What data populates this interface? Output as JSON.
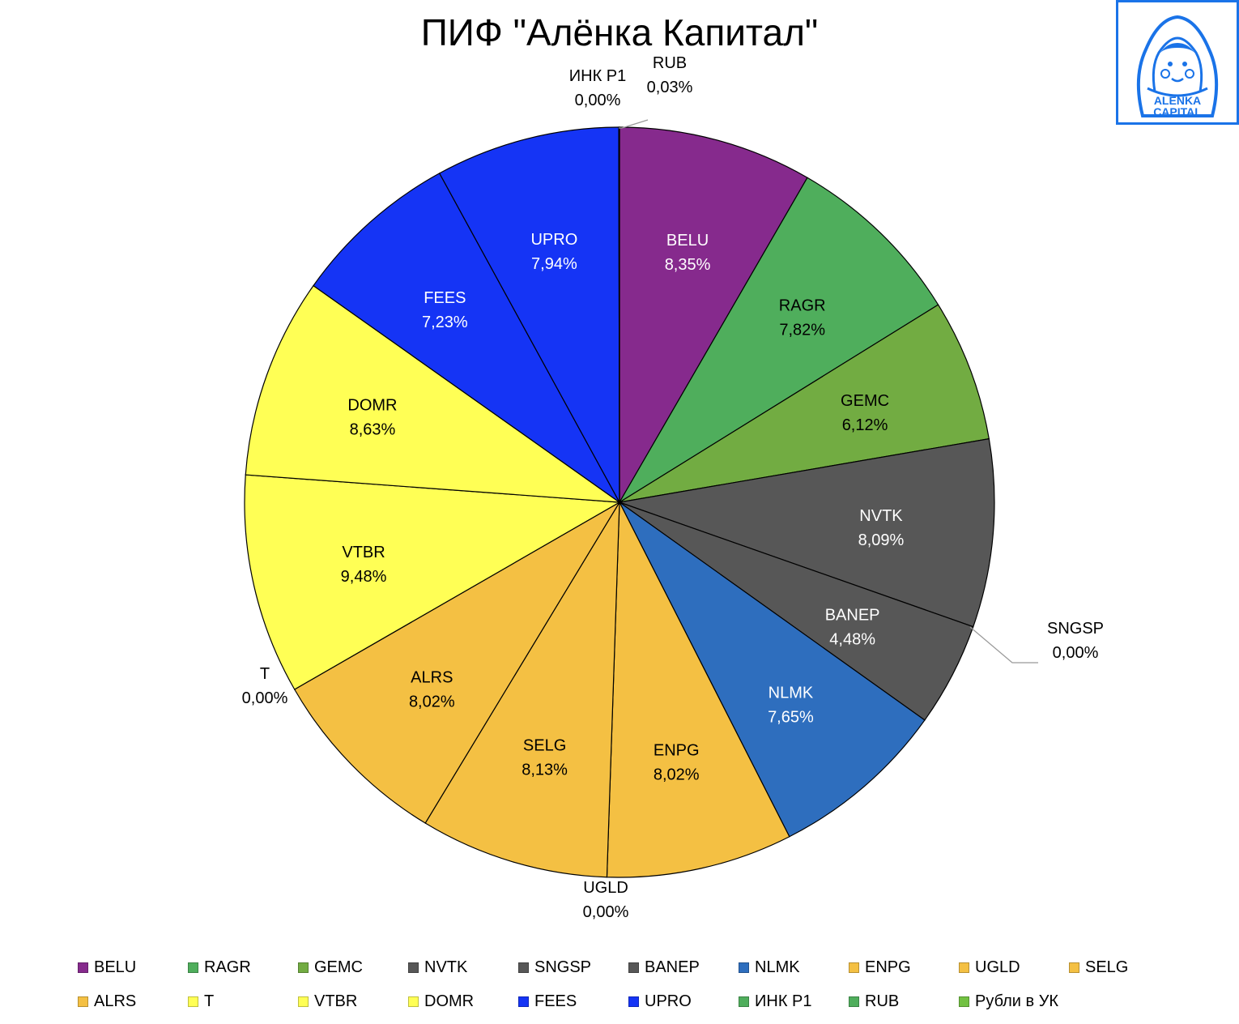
{
  "title": "ПИФ \"Алёнка Капитал\"",
  "logo": {
    "line1": "ALЁNKA",
    "line2": "CAPITAL",
    "color": "#1a73e8"
  },
  "chart_data": {
    "type": "pie",
    "start_angle_deg": 0,
    "direction": "clockwise",
    "slices": [
      {
        "name": "BELU",
        "label": "8,35%",
        "value": 8.35,
        "color": "#862a8d",
        "label_color": "#ffffff"
      },
      {
        "name": "RAGR",
        "label": "7,82%",
        "value": 7.82,
        "color": "#4fae5c",
        "label_color": "#000000"
      },
      {
        "name": "GEMC",
        "label": "6,12%",
        "value": 6.12,
        "color": "#72ac42",
        "label_color": "#000000"
      },
      {
        "name": "NVTK",
        "label": "8,09%",
        "value": 8.09,
        "color": "#575757",
        "label_color": "#ffffff"
      },
      {
        "name": "SNGSP",
        "label": "0,00%",
        "value": 0.0,
        "color": "#575757",
        "label_color": "#000000"
      },
      {
        "name": "BANEP",
        "label": "4,48%",
        "value": 4.48,
        "color": "#575757",
        "label_color": "#ffffff"
      },
      {
        "name": "NLMK",
        "label": "7,65%",
        "value": 7.65,
        "color": "#2e6ebe",
        "label_color": "#ffffff"
      },
      {
        "name": "ENPG",
        "label": "8,02%",
        "value": 8.02,
        "color": "#f4c043",
        "label_color": "#000000"
      },
      {
        "name": "UGLD",
        "label": "0,00%",
        "value": 0.0,
        "color": "#f4c043",
        "label_color": "#000000"
      },
      {
        "name": "SELG",
        "label": "8,13%",
        "value": 8.13,
        "color": "#f4c043",
        "label_color": "#000000"
      },
      {
        "name": "ALRS",
        "label": "8,02%",
        "value": 8.02,
        "color": "#f4c043",
        "label_color": "#000000"
      },
      {
        "name": "T",
        "label": "0,00%",
        "value": 0.0,
        "color": "#ffff55",
        "label_color": "#000000"
      },
      {
        "name": "VTBR",
        "label": "9,48%",
        "value": 9.48,
        "color": "#ffff55",
        "label_color": "#000000"
      },
      {
        "name": "DOMR",
        "label": "8,63%",
        "value": 8.63,
        "color": "#ffff55",
        "label_color": "#000000"
      },
      {
        "name": "FEES",
        "label": "7,23%",
        "value": 7.23,
        "color": "#1534f5",
        "label_color": "#ffffff"
      },
      {
        "name": "UPRO",
        "label": "7,94%",
        "value": 7.94,
        "color": "#1534f5",
        "label_color": "#ffffff"
      },
      {
        "name": "ИНК Р1",
        "label": "0,00%",
        "value": 0.0,
        "color": "#4fae5c",
        "label_color": "#000000"
      },
      {
        "name": "RUB",
        "label": "0,03%",
        "value": 0.03,
        "color": "#4fae5c",
        "label_color": "#000000"
      },
      {
        "name": "Рубли в УК",
        "label": "",
        "value": 0.0,
        "color": "#72c142",
        "label_color": "#000000"
      }
    ],
    "legend": [
      {
        "name": "BELU",
        "color": "#862a8d"
      },
      {
        "name": "RAGR",
        "color": "#4fae5c"
      },
      {
        "name": "GEMC",
        "color": "#72ac42"
      },
      {
        "name": "NVTK",
        "color": "#575757"
      },
      {
        "name": "SNGSP",
        "color": "#575757"
      },
      {
        "name": "BANEP",
        "color": "#575757"
      },
      {
        "name": "NLMK",
        "color": "#2e6ebe"
      },
      {
        "name": "ENPG",
        "color": "#f4c043"
      },
      {
        "name": "UGLD",
        "color": "#f4c043"
      },
      {
        "name": "SELG",
        "color": "#f4c043"
      },
      {
        "name": "ALRS",
        "color": "#f4c043"
      },
      {
        "name": "T",
        "color": "#ffff55"
      },
      {
        "name": "VTBR",
        "color": "#ffff55"
      },
      {
        "name": "DOMR",
        "color": "#ffff55"
      },
      {
        "name": "FEES",
        "color": "#1534f5"
      },
      {
        "name": "UPRO",
        "color": "#1534f5"
      },
      {
        "name": "ИНК Р1",
        "color": "#4fae5c"
      },
      {
        "name": "RUB",
        "color": "#4fae5c"
      },
      {
        "name": "Рубли в УК",
        "color": "#72c142"
      }
    ],
    "legend_position": "bottom"
  }
}
